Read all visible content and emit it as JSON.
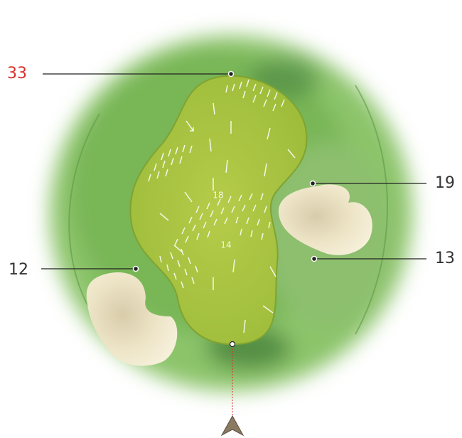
{
  "callouts": [
    {
      "label": "33"
    },
    {
      "label": "19"
    },
    {
      "label": "13"
    },
    {
      "label": "12"
    }
  ],
  "contour_labels": [
    "18",
    "14"
  ]
}
